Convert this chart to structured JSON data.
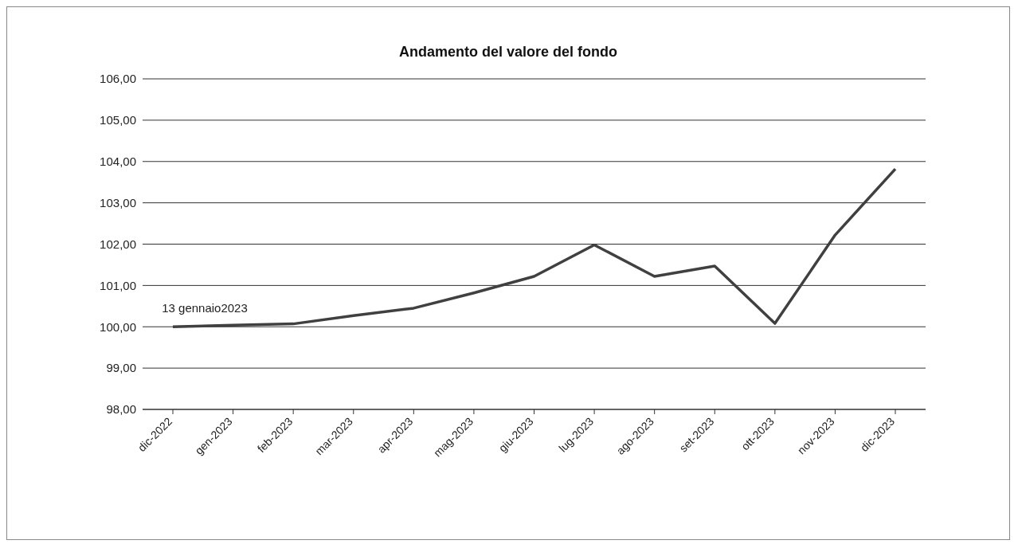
{
  "chart_data": {
    "type": "line",
    "title": "Andamento del valore del fondo",
    "categories": [
      "dic-2022",
      "gen-2023",
      "feb-2023",
      "mar-2023",
      "apr-2023",
      "mag-2023",
      "giu-2023",
      "lug-2023",
      "ago-2023",
      "set-2023",
      "ott-2023",
      "nov-2023",
      "dic-2023"
    ],
    "series": [
      {
        "color": "#404040",
        "values": [
          100.0,
          100.04,
          100.07,
          100.27,
          100.45,
          100.82,
          101.22,
          101.98,
          101.22,
          101.47,
          100.08,
          102.22,
          103.82
        ]
      }
    ],
    "ylim": [
      98,
      106
    ],
    "yticks": [
      {
        "value": 98,
        "label": "98,00"
      },
      {
        "value": 99,
        "label": "99,00"
      },
      {
        "value": 100,
        "label": "100,00"
      },
      {
        "value": 101,
        "label": "101,00"
      },
      {
        "value": 102,
        "label": "102,00"
      },
      {
        "value": 103,
        "label": "103,00"
      },
      {
        "value": 104,
        "label": "104,00"
      },
      {
        "value": 105,
        "label": "105,00"
      },
      {
        "value": 106,
        "label": "106,00"
      }
    ],
    "grid": "y",
    "marker": "none",
    "line_style": "solid",
    "annotations": [
      {
        "text": "13 gennaio2023",
        "x": "dic-2022",
        "y": 100
      }
    ]
  }
}
